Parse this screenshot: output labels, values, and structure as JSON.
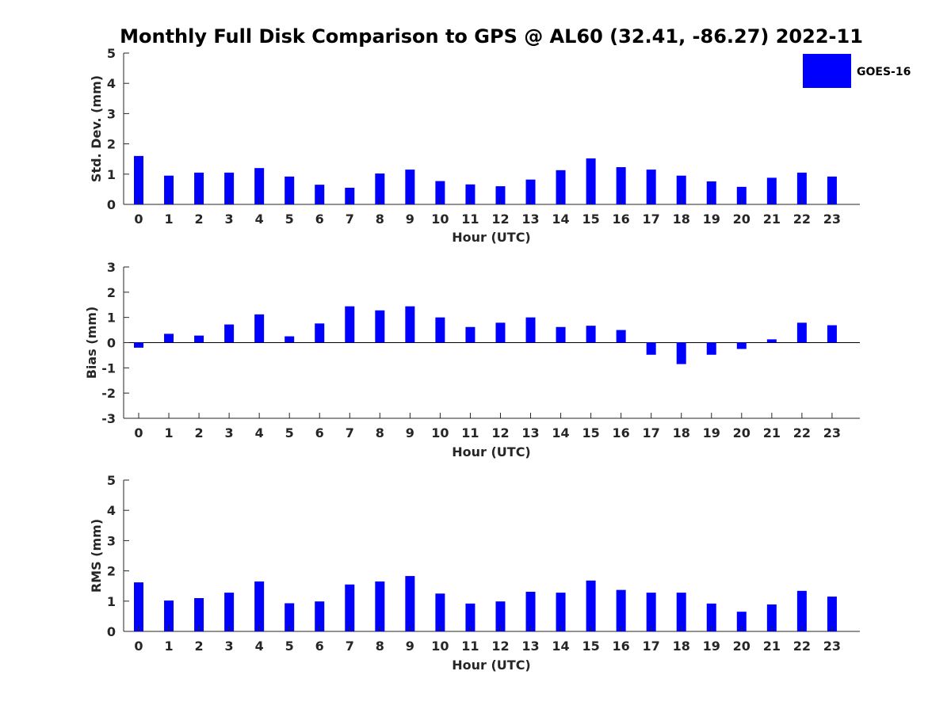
{
  "chart_data": {
    "title": "Monthly Full Disk Comparison to GPS @ AL60 (32.41, -86.27) 2022-11",
    "legend": {
      "entries": [
        "GOES-16"
      ],
      "placement": "top-right"
    },
    "series_color": "#0000ff",
    "panels": [
      {
        "type": "bar",
        "series_name": "GOES-16",
        "xlabel": "Hour (UTC)",
        "ylabel": "Std. Dev. (mm)",
        "ylim": [
          0,
          5
        ],
        "yticks": [
          "0",
          "1",
          "2",
          "3",
          "4",
          "5"
        ],
        "categories": [
          "0",
          "1",
          "2",
          "3",
          "4",
          "5",
          "6",
          "7",
          "8",
          "9",
          "10",
          "11",
          "12",
          "13",
          "14",
          "15",
          "16",
          "17",
          "18",
          "19",
          "20",
          "21",
          "22",
          "23"
        ],
        "values": [
          1.6,
          0.95,
          1.05,
          1.05,
          1.2,
          0.92,
          0.65,
          0.55,
          1.02,
          1.15,
          0.77,
          0.66,
          0.6,
          0.82,
          1.13,
          1.52,
          1.23,
          1.15,
          0.95,
          0.76,
          0.58,
          0.88,
          1.05,
          0.92
        ]
      },
      {
        "type": "bar",
        "series_name": "GOES-16",
        "xlabel": "Hour (UTC)",
        "ylabel": "Bias (mm)",
        "ylim": [
          -3,
          3
        ],
        "yticks": [
          "-3",
          "-2",
          "-1",
          "0",
          "1",
          "2",
          "3"
        ],
        "categories": [
          "0",
          "1",
          "2",
          "3",
          "4",
          "5",
          "6",
          "7",
          "8",
          "9",
          "10",
          "11",
          "12",
          "13",
          "14",
          "15",
          "16",
          "17",
          "18",
          "19",
          "20",
          "21",
          "22",
          "23"
        ],
        "values": [
          -0.2,
          0.35,
          0.28,
          0.72,
          1.12,
          0.25,
          0.76,
          1.44,
          1.28,
          1.44,
          1.0,
          0.62,
          0.79,
          1.0,
          0.62,
          0.67,
          0.5,
          -0.48,
          -0.85,
          -0.48,
          -0.25,
          0.13,
          0.79,
          0.69
        ]
      },
      {
        "type": "bar",
        "series_name": "GOES-16",
        "xlabel": "Hour (UTC)",
        "ylabel": "RMS (mm)",
        "ylim": [
          0,
          5
        ],
        "yticks": [
          "0",
          "1",
          "2",
          "3",
          "4",
          "5"
        ],
        "categories": [
          "0",
          "1",
          "2",
          "3",
          "4",
          "5",
          "6",
          "7",
          "8",
          "9",
          "10",
          "11",
          "12",
          "13",
          "14",
          "15",
          "16",
          "17",
          "18",
          "19",
          "20",
          "21",
          "22",
          "23"
        ],
        "values": [
          1.62,
          1.02,
          1.1,
          1.28,
          1.65,
          0.93,
          0.99,
          1.55,
          1.65,
          1.83,
          1.25,
          0.92,
          0.99,
          1.31,
          1.28,
          1.68,
          1.37,
          1.28,
          1.28,
          0.92,
          0.65,
          0.89,
          1.34,
          1.15
        ]
      }
    ]
  }
}
